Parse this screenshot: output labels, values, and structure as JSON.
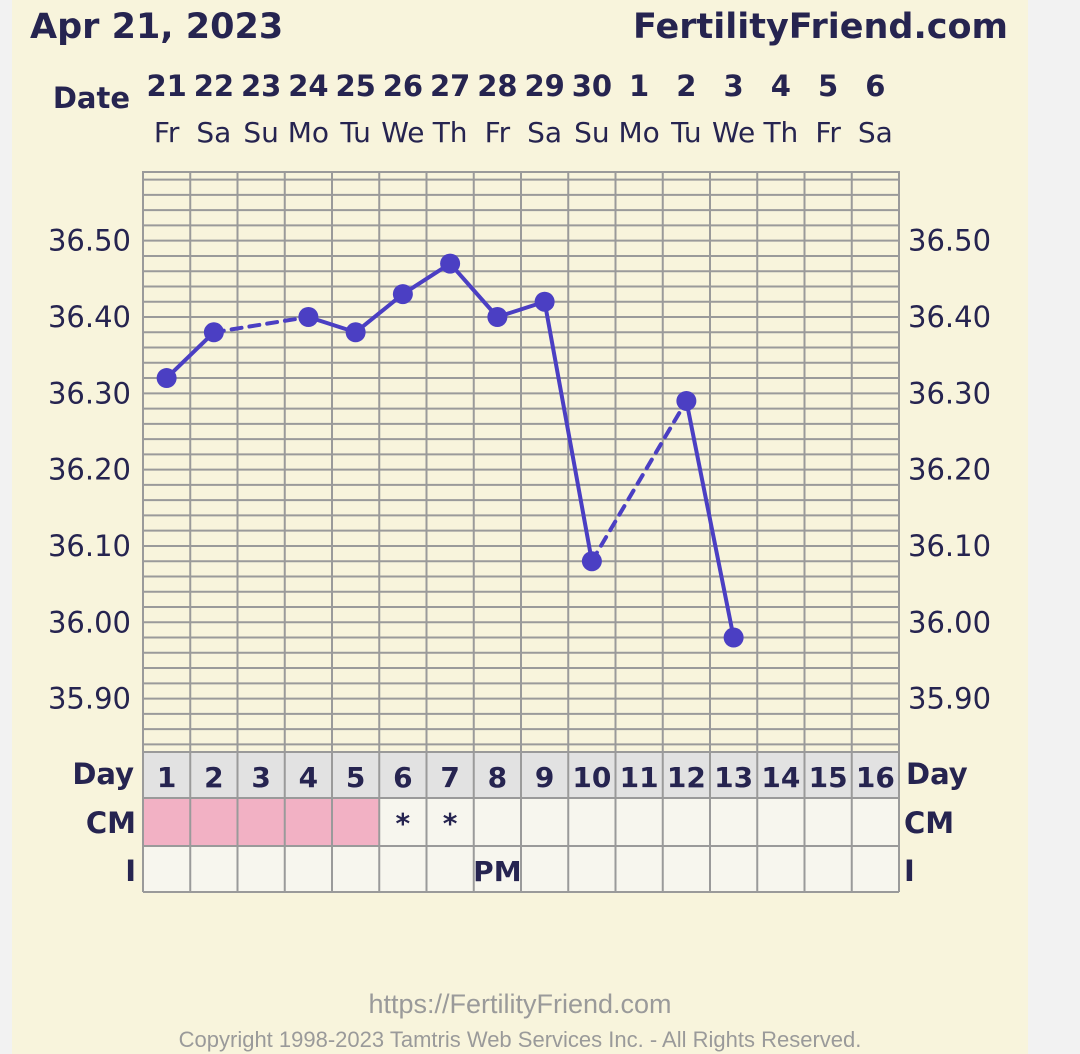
{
  "header": {
    "date": "Apr 21, 2023",
    "site": "FertilityFriend.com"
  },
  "labels": {
    "date": "Date",
    "day": "Day",
    "cm": "CM",
    "intercourse": "I"
  },
  "chart_data": {
    "type": "line",
    "dates": [
      "21",
      "22",
      "23",
      "24",
      "25",
      "26",
      "27",
      "28",
      "29",
      "30",
      "1",
      "2",
      "3",
      "4",
      "5",
      "6"
    ],
    "weekdays": [
      "Fr",
      "Sa",
      "Su",
      "Mo",
      "Tu",
      "We",
      "Th",
      "Fr",
      "Sa",
      "Su",
      "Mo",
      "Tu",
      "We",
      "Th",
      "Fr",
      "Sa"
    ],
    "cycle_days": [
      "1",
      "2",
      "3",
      "4",
      "5",
      "6",
      "7",
      "8",
      "9",
      "10",
      "11",
      "12",
      "13",
      "14",
      "15",
      "16"
    ],
    "y_ticks": [
      "36.50",
      "36.40",
      "36.30",
      "36.20",
      "36.10",
      "36.00",
      "35.90"
    ],
    "ylim": [
      35.83,
      36.59
    ],
    "grid": true,
    "temps": [
      {
        "day": 1,
        "value": 36.32
      },
      {
        "day": 2,
        "value": 36.38
      },
      {
        "day": 4,
        "value": 36.4
      },
      {
        "day": 5,
        "value": 36.38
      },
      {
        "day": 6,
        "value": 36.43
      },
      {
        "day": 7,
        "value": 36.47
      },
      {
        "day": 8,
        "value": 36.4
      },
      {
        "day": 9,
        "value": 36.42
      },
      {
        "day": 10,
        "value": 36.08
      },
      {
        "day": 12,
        "value": 36.29
      },
      {
        "day": 13,
        "value": 35.98
      }
    ],
    "cm_row": {
      "period_days": [
        1,
        2,
        3,
        4,
        5
      ],
      "marks": [
        {
          "day": 6,
          "text": "*"
        },
        {
          "day": 7,
          "text": "*"
        }
      ]
    },
    "intercourse_row": {
      "marks": [
        {
          "day": 8,
          "text": "PM"
        }
      ]
    },
    "colors": {
      "line": "#4b3fc3",
      "period": "#f2b1c4",
      "grid": "#9a9a9a",
      "text": "#262450"
    }
  },
  "footer": {
    "url": "https://FertilityFriend.com",
    "copyright": "Copyright 1998-2023 Tamtris Web Services Inc. - All Rights Reserved."
  }
}
